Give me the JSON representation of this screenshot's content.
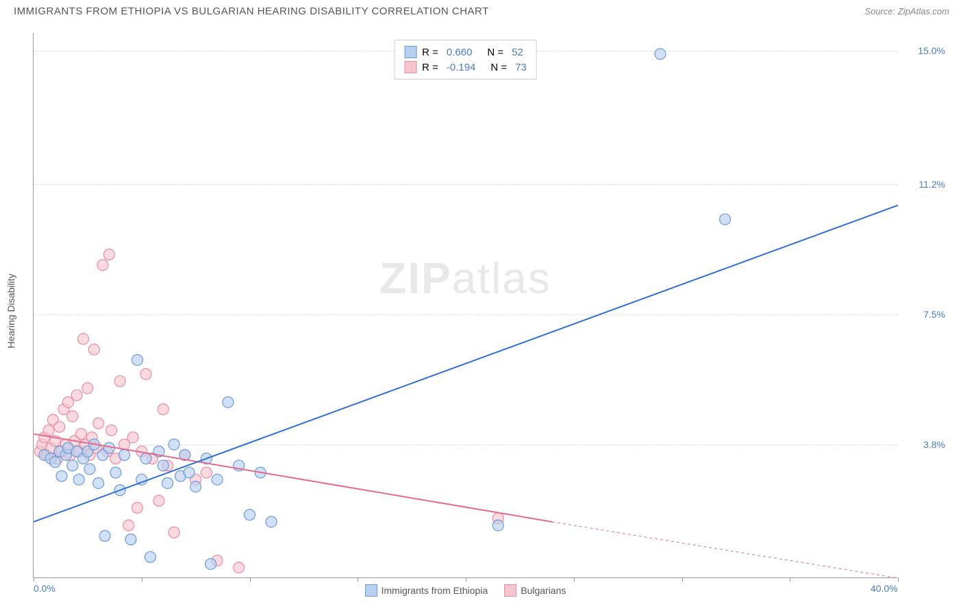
{
  "header": {
    "title": "IMMIGRANTS FROM ETHIOPIA VS BULGARIAN HEARING DISABILITY CORRELATION CHART",
    "source_label": "Source:",
    "source_name": "ZipAtlas.com"
  },
  "chart": {
    "type": "scatter",
    "y_axis_label": "Hearing Disability",
    "xlim": [
      0,
      40
    ],
    "ylim": [
      0,
      15.5
    ],
    "x_ticks_minor": [
      0,
      5,
      10,
      15,
      20,
      25,
      30,
      35,
      40
    ],
    "x_tick_labels": [
      {
        "v": 0,
        "label": "0.0%"
      },
      {
        "v": 40,
        "label": "40.0%"
      }
    ],
    "y_ticks": [
      {
        "v": 3.8,
        "label": "3.8%"
      },
      {
        "v": 7.5,
        "label": "7.5%"
      },
      {
        "v": 11.2,
        "label": "11.2%"
      },
      {
        "v": 15.0,
        "label": "15.0%"
      }
    ],
    "grid_color": "#dddddd",
    "background_color": "#ffffff",
    "axis_color": "#999999",
    "tick_label_color": "#4a7bc8",
    "series": [
      {
        "name": "Immigrants from Ethiopia",
        "color_fill": "#b8d0f0",
        "color_stroke": "#6a9ad8",
        "marker_radius": 8,
        "r": "0.660",
        "n": "52",
        "regression": {
          "x1": 0,
          "y1": 1.6,
          "x2": 40,
          "y2": 10.6,
          "color": "#2c6fd6",
          "width": 2
        },
        "points": [
          [
            0.5,
            3.5
          ],
          [
            0.8,
            3.4
          ],
          [
            1.0,
            3.3
          ],
          [
            1.2,
            3.6
          ],
          [
            1.3,
            2.9
          ],
          [
            1.5,
            3.5
          ],
          [
            1.6,
            3.7
          ],
          [
            1.8,
            3.2
          ],
          [
            2.0,
            3.6
          ],
          [
            2.1,
            2.8
          ],
          [
            2.3,
            3.4
          ],
          [
            2.5,
            3.6
          ],
          [
            2.6,
            3.1
          ],
          [
            2.8,
            3.8
          ],
          [
            3.0,
            2.7
          ],
          [
            3.2,
            3.5
          ],
          [
            3.3,
            1.2
          ],
          [
            3.5,
            3.7
          ],
          [
            3.8,
            3.0
          ],
          [
            4.0,
            2.5
          ],
          [
            4.2,
            3.5
          ],
          [
            4.5,
            1.1
          ],
          [
            4.8,
            6.2
          ],
          [
            5.0,
            2.8
          ],
          [
            5.2,
            3.4
          ],
          [
            5.4,
            0.6
          ],
          [
            5.8,
            3.6
          ],
          [
            6.0,
            3.2
          ],
          [
            6.2,
            2.7
          ],
          [
            6.5,
            3.8
          ],
          [
            6.8,
            2.9
          ],
          [
            7.0,
            3.5
          ],
          [
            7.2,
            3.0
          ],
          [
            7.5,
            2.6
          ],
          [
            8.0,
            3.4
          ],
          [
            8.2,
            0.4
          ],
          [
            8.5,
            2.8
          ],
          [
            9.0,
            5.0
          ],
          [
            9.5,
            3.2
          ],
          [
            10.0,
            1.8
          ],
          [
            10.5,
            3.0
          ],
          [
            11.0,
            1.6
          ],
          [
            21.5,
            1.5
          ],
          [
            29.0,
            14.9
          ],
          [
            32.0,
            10.2
          ]
        ]
      },
      {
        "name": "Bulgarians",
        "color_fill": "#f6c6d0",
        "color_stroke": "#eb8aa2",
        "marker_radius": 8,
        "r": "-0.194",
        "n": "73",
        "regression": {
          "x1": 0,
          "y1": 4.1,
          "x2": 24,
          "y2": 1.6,
          "x3": 40,
          "y3": 0.0,
          "color": "#e56a89",
          "width": 2
        },
        "points": [
          [
            0.3,
            3.6
          ],
          [
            0.4,
            3.8
          ],
          [
            0.5,
            4.0
          ],
          [
            0.6,
            3.5
          ],
          [
            0.7,
            4.2
          ],
          [
            0.8,
            3.7
          ],
          [
            0.9,
            4.5
          ],
          [
            1.0,
            3.9
          ],
          [
            1.1,
            3.4
          ],
          [
            1.2,
            4.3
          ],
          [
            1.3,
            3.6
          ],
          [
            1.4,
            4.8
          ],
          [
            1.5,
            3.8
          ],
          [
            1.6,
            5.0
          ],
          [
            1.7,
            3.5
          ],
          [
            1.8,
            4.6
          ],
          [
            1.9,
            3.9
          ],
          [
            2.0,
            5.2
          ],
          [
            2.1,
            3.6
          ],
          [
            2.2,
            4.1
          ],
          [
            2.3,
            6.8
          ],
          [
            2.4,
            3.8
          ],
          [
            2.5,
            5.4
          ],
          [
            2.6,
            3.5
          ],
          [
            2.7,
            4.0
          ],
          [
            2.8,
            6.5
          ],
          [
            2.9,
            3.7
          ],
          [
            3.0,
            4.4
          ],
          [
            3.2,
            8.9
          ],
          [
            3.4,
            3.6
          ],
          [
            3.5,
            9.2
          ],
          [
            3.6,
            4.2
          ],
          [
            3.8,
            3.4
          ],
          [
            4.0,
            5.6
          ],
          [
            4.2,
            3.8
          ],
          [
            4.4,
            1.5
          ],
          [
            4.6,
            4.0
          ],
          [
            4.8,
            2.0
          ],
          [
            5.0,
            3.6
          ],
          [
            5.2,
            5.8
          ],
          [
            5.5,
            3.4
          ],
          [
            5.8,
            2.2
          ],
          [
            6.0,
            4.8
          ],
          [
            6.2,
            3.2
          ],
          [
            6.5,
            1.3
          ],
          [
            7.0,
            3.5
          ],
          [
            7.5,
            2.8
          ],
          [
            8.0,
            3.0
          ],
          [
            8.5,
            0.5
          ],
          [
            9.5,
            0.3
          ],
          [
            21.5,
            1.7
          ]
        ]
      }
    ],
    "legend_bottom": [
      {
        "label": "Immigrants from Ethiopia",
        "fill": "#b8d0f0",
        "stroke": "#6a9ad8"
      },
      {
        "label": "Bulgarians",
        "fill": "#f6c6d0",
        "stroke": "#eb8aa2"
      }
    ],
    "watermark": {
      "zip": "ZIP",
      "atlas": "atlas"
    }
  }
}
